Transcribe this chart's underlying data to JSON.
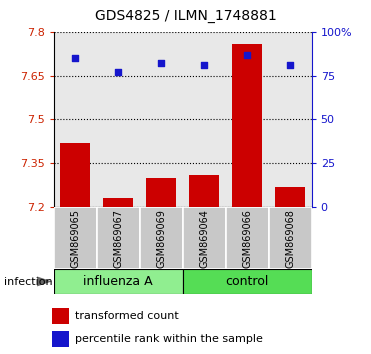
{
  "title": "GDS4825 / ILMN_1748881",
  "samples": [
    "GSM869065",
    "GSM869067",
    "GSM869069",
    "GSM869064",
    "GSM869066",
    "GSM869068"
  ],
  "transformed_counts": [
    7.42,
    7.23,
    7.3,
    7.31,
    7.76,
    7.27
  ],
  "percentile_ranks": [
    85,
    77,
    82,
    81,
    87,
    81
  ],
  "ylim_left": [
    7.2,
    7.8
  ],
  "ylim_right": [
    0,
    100
  ],
  "yticks_left": [
    7.2,
    7.35,
    7.5,
    7.65,
    7.8
  ],
  "yticks_right": [
    0,
    25,
    50,
    75,
    100
  ],
  "ytick_labels_left": [
    "7.2",
    "7.35",
    "7.5",
    "7.65",
    "7.8"
  ],
  "ytick_labels_right": [
    "0",
    "25",
    "50",
    "75",
    "100%"
  ],
  "bar_color": "#CC0000",
  "dot_color": "#1515CC",
  "grid_color": "#000000",
  "axis_color_left": "#CC2200",
  "axis_color_right": "#1515CC",
  "label_infection": "infection",
  "legend_bar": "transformed count",
  "legend_dot": "percentile rank within the sample",
  "bg_plot": "#E8E8E8",
  "bg_sample": "#C8C8C8",
  "bg_group_light": "#90EE90",
  "bg_group_dark": "#55DD55",
  "title_fontsize": 10,
  "tick_fontsize": 8,
  "sample_fontsize": 7,
  "group_fontsize": 9,
  "legend_fontsize": 8
}
